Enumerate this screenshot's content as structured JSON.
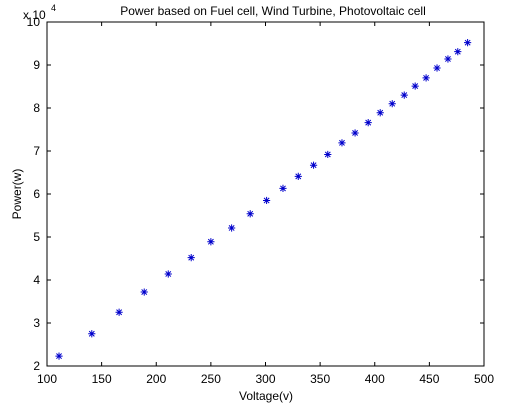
{
  "chart_data": {
    "type": "scatter",
    "title": "Power based on Fuel cell, Wind Turbine, Photovoltaic cell",
    "xlabel": "Voltage(v)",
    "ylabel": "Power(w)",
    "xlim": [
      100,
      500
    ],
    "ylim": [
      20000,
      100000
    ],
    "xticks": [
      100,
      150,
      200,
      250,
      300,
      350,
      400,
      450,
      500
    ],
    "yticks": [
      2,
      3,
      4,
      5,
      6,
      7,
      8,
      9,
      10
    ],
    "y_multiplier_label": "x 10",
    "y_multiplier_exponent": "4",
    "marker": "*",
    "grid": false,
    "colors": {
      "marker": "#0000cc",
      "axis": "#000000",
      "background": "#ffffff"
    },
    "series": [
      {
        "x": [
          111,
          141,
          166,
          189,
          211,
          232,
          250,
          269,
          286,
          301,
          316,
          330,
          344,
          357,
          370,
          382,
          394,
          405,
          416,
          427,
          437,
          447,
          457,
          467,
          476,
          485
        ],
        "y": [
          22300,
          27500,
          32500,
          37200,
          41400,
          45200,
          48900,
          52100,
          55400,
          58500,
          61300,
          64100,
          66700,
          69200,
          71900,
          74200,
          76600,
          78900,
          81000,
          83000,
          85100,
          87000,
          89300,
          91400,
          93100,
          95200
        ]
      }
    ]
  }
}
